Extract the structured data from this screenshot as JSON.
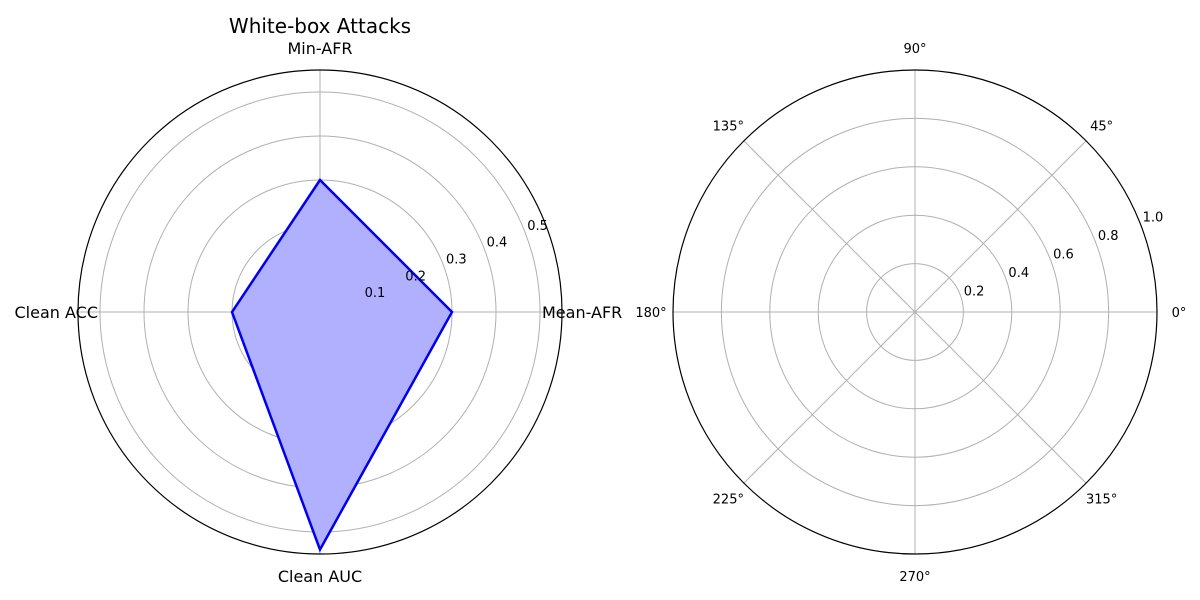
{
  "chart_data": [
    {
      "type": "radar",
      "title": "White-box Attacks",
      "categories": [
        "Mean-AFR",
        "Min-AFR",
        "Clean ACC",
        "Clean AUC"
      ],
      "series": [
        {
          "values": [
            0.3,
            0.3,
            0.2,
            0.54
          ],
          "line_color": "#0000ee",
          "fill_color": "#b0b0ff"
        }
      ],
      "rlim": [
        0,
        0.55
      ],
      "r_ticks": [
        0.1,
        0.2,
        0.3,
        0.4,
        0.5
      ],
      "r_tick_labels": [
        "0.1",
        "0.2",
        "0.3",
        "0.4",
        "0.5"
      ],
      "grid": true
    },
    {
      "type": "polar",
      "title": "",
      "theta_ticks": [
        0,
        45,
        90,
        135,
        180,
        225,
        270,
        315
      ],
      "theta_tick_labels": [
        "0°",
        "45°",
        "90°",
        "135°",
        "180°",
        "225°",
        "270°",
        "315°"
      ],
      "rlim": [
        0,
        1.0
      ],
      "r_ticks": [
        0.2,
        0.4,
        0.6,
        0.8,
        1.0
      ],
      "r_tick_labels": [
        "0.2",
        "0.4",
        "0.6",
        "0.8",
        "1.0"
      ],
      "series": [],
      "grid": true
    }
  ]
}
